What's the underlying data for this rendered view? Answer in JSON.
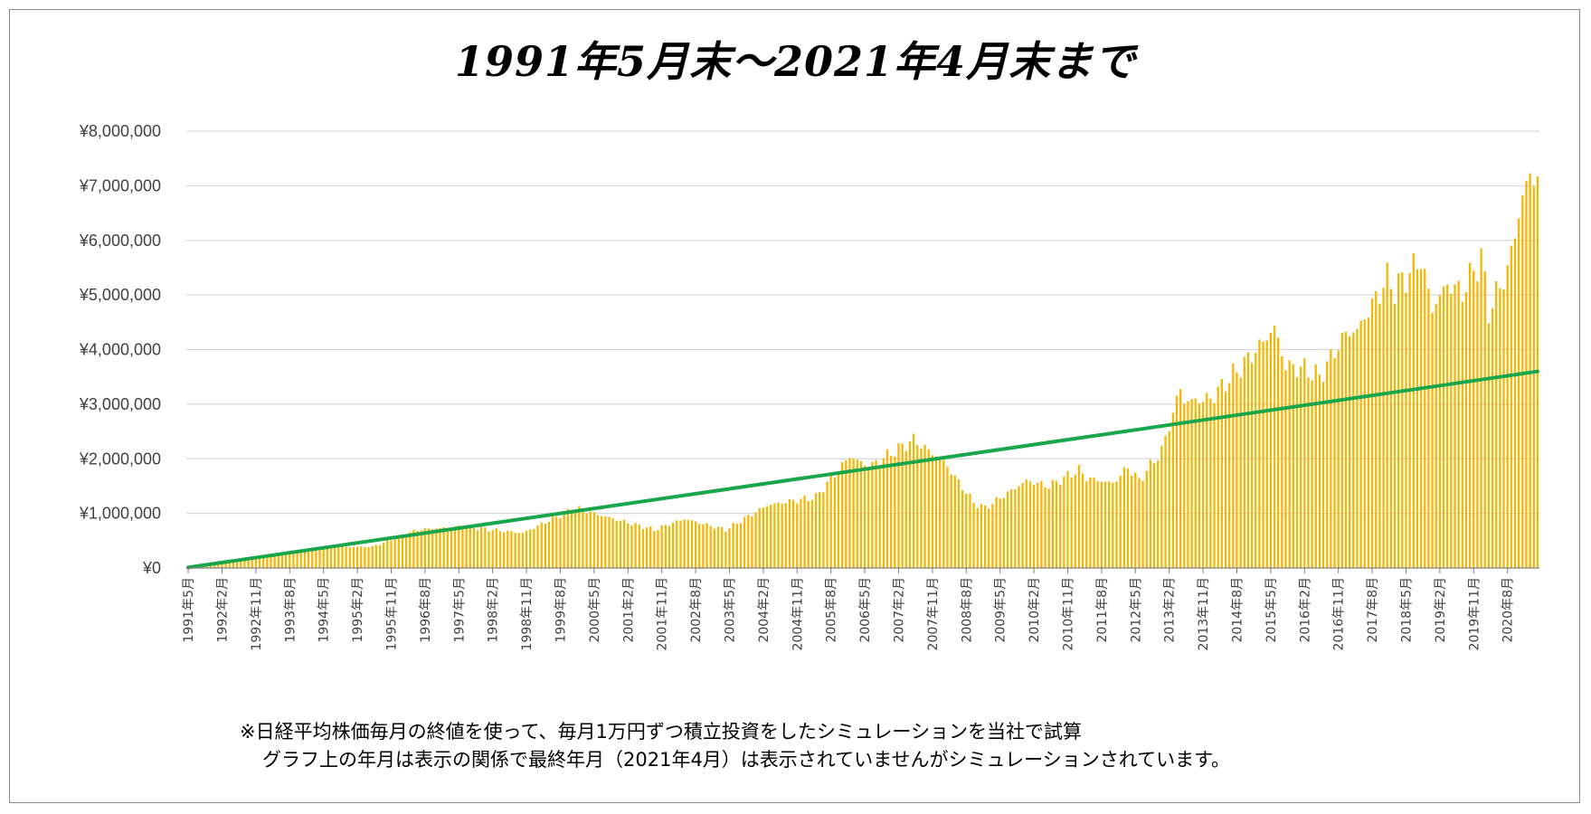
{
  "title": "1991年5月末〜2021年4月末まで",
  "notes": {
    "line1": "※日経平均株価毎月の終値を使って、毎月1万円ずつ積立投資をしたシミュレーションを当社で試算",
    "line2": "グラフ上の年月は表示の関係で最終年月（2021年4月）は表示されていませんがシミュレーションされています。"
  },
  "colors": {
    "bar": "#f2b705",
    "line": "#1aa64a",
    "grid": "#d9d9d9",
    "axis": "#7f7f7f",
    "frame": "#8c8c8c"
  },
  "chart_data": {
    "type": "bar",
    "title": "1991年5月末〜2021年4月末まで",
    "xlabel": "",
    "ylabel": "",
    "ylim": [
      0,
      8000000
    ],
    "y_ticks": [
      0,
      1000000,
      2000000,
      3000000,
      4000000,
      5000000,
      6000000,
      7000000,
      8000000
    ],
    "y_tick_labels": [
      "¥0",
      "¥1,000,000",
      "¥2,000,000",
      "¥3,000,000",
      "¥4,000,000",
      "¥5,000,000",
      "¥6,000,000",
      "¥7,000,000",
      "¥8,000,000"
    ],
    "grid": true,
    "legend": "none",
    "x_start": "1991-05",
    "x_end": "2021-04",
    "x_tick_labels": [
      "1991年5月",
      "1992年2月",
      "1992年11月",
      "1993年8月",
      "1994年5月",
      "1995年2月",
      "1995年11月",
      "1996年8月",
      "1997年5月",
      "1998年2月",
      "1998年11月",
      "1999年8月",
      "2000年5月",
      "2001年2月",
      "2001年11月",
      "2002年8月",
      "2003年5月",
      "2004年2月",
      "2004年11月",
      "2005年8月",
      "2006年5月",
      "2007年2月",
      "2007年11月",
      "2008年8月",
      "2009年5月",
      "2010年2月",
      "2010年11月",
      "2011年8月",
      "2012年5月",
      "2013年2月",
      "2013年11月",
      "2014年8月",
      "2015年5月",
      "2016年2月",
      "2016年11月",
      "2017年8月",
      "2018年5月",
      "2019年2月",
      "2019年11月",
      "2020年8月"
    ],
    "series": [
      {
        "type": "bar",
        "anchors": [
          [
            "1991-05",
            10000
          ],
          [
            "1992-05",
            130000
          ],
          [
            "1993-05",
            260000
          ],
          [
            "1994-05",
            380000
          ],
          [
            "1995-06",
            390000
          ],
          [
            "1996-06",
            700000
          ],
          [
            "1997-06",
            760000
          ],
          [
            "1998-10",
            640000
          ],
          [
            "1999-12",
            1100000
          ],
          [
            "2000-06",
            980000
          ],
          [
            "2001-09",
            700000
          ],
          [
            "2002-05",
            900000
          ],
          [
            "2003-04",
            700000
          ],
          [
            "2004-03",
            1150000
          ],
          [
            "2005-04",
            1300000
          ],
          [
            "2006-01",
            2050000
          ],
          [
            "2006-06",
            1850000
          ],
          [
            "2007-06",
            2350000
          ],
          [
            "2008-02",
            1950000
          ],
          [
            "2008-10",
            1200000
          ],
          [
            "2009-01",
            1100000
          ],
          [
            "2009-12",
            1600000
          ],
          [
            "2010-06",
            1500000
          ],
          [
            "2011-02",
            1800000
          ],
          [
            "2011-04",
            1650000
          ],
          [
            "2011-11",
            1550000
          ],
          [
            "2012-03",
            1850000
          ],
          [
            "2012-06",
            1600000
          ],
          [
            "2012-12",
            2150000
          ],
          [
            "2013-05",
            3300000
          ],
          [
            "2013-06",
            3050000
          ],
          [
            "2014-01",
            3100000
          ],
          [
            "2014-12",
            3900000
          ],
          [
            "2015-06",
            4400000
          ],
          [
            "2015-09",
            3700000
          ],
          [
            "2016-02",
            3650000
          ],
          [
            "2016-06",
            3500000
          ],
          [
            "2017-01",
            4300000
          ],
          [
            "2017-04",
            4350000
          ],
          [
            "2017-12",
            5300000
          ],
          [
            "2018-02",
            5100000
          ],
          [
            "2018-09",
            5650000
          ],
          [
            "2018-12",
            4750000
          ],
          [
            "2019-04",
            5200000
          ],
          [
            "2019-08",
            5050000
          ],
          [
            "2020-01",
            5700000
          ],
          [
            "2020-03",
            4700000
          ],
          [
            "2020-08",
            5450000
          ],
          [
            "2020-12",
            6800000
          ],
          [
            "2021-02",
            7200000
          ],
          [
            "2021-04",
            7150000
          ]
        ]
      },
      {
        "type": "line",
        "start": [
          "1991-05",
          10000
        ],
        "end": [
          "2021-04",
          3600000
        ]
      }
    ]
  }
}
